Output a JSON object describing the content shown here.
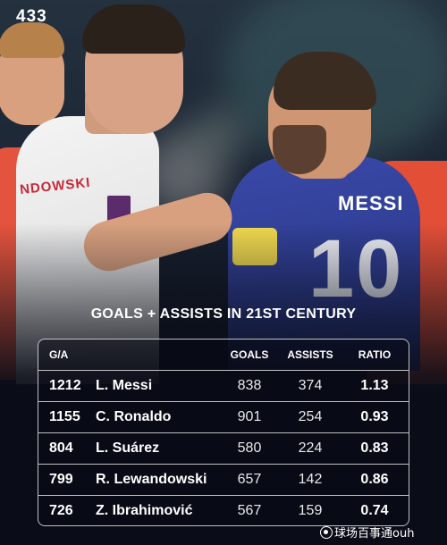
{
  "brand": {
    "logo_text": "433"
  },
  "photo": {
    "left_shirt_text": "NDOWSKI",
    "right_shirt_name": "MESSI",
    "right_shirt_number": "10"
  },
  "title": "GOALS + ASSISTS IN 21ST CENTURY",
  "table": {
    "headers": {
      "ga": "G/A",
      "name": "",
      "goals": "GOALS",
      "assists": "ASSISTS",
      "ratio": "RATIO"
    },
    "rows": [
      {
        "ga": "1212",
        "name": "L. Messi",
        "goals": "838",
        "assists": "374",
        "ratio": "1.13"
      },
      {
        "ga": "1155",
        "name": "C. Ronaldo",
        "goals": "901",
        "assists": "254",
        "ratio": "0.93"
      },
      {
        "ga": "804",
        "name": "L. Suárez",
        "goals": "580",
        "assists": "224",
        "ratio": "0.83"
      },
      {
        "ga": "799",
        "name": "R. Lewandowski",
        "goals": "657",
        "assists": "142",
        "ratio": "0.86"
      },
      {
        "ga": "726",
        "name": "Z. Ibrahimović",
        "goals": "567",
        "assists": "159",
        "ratio": "0.74"
      }
    ]
  },
  "watermark": {
    "text": "球场百事通ouh",
    "icon": "circle-logo-icon"
  }
}
